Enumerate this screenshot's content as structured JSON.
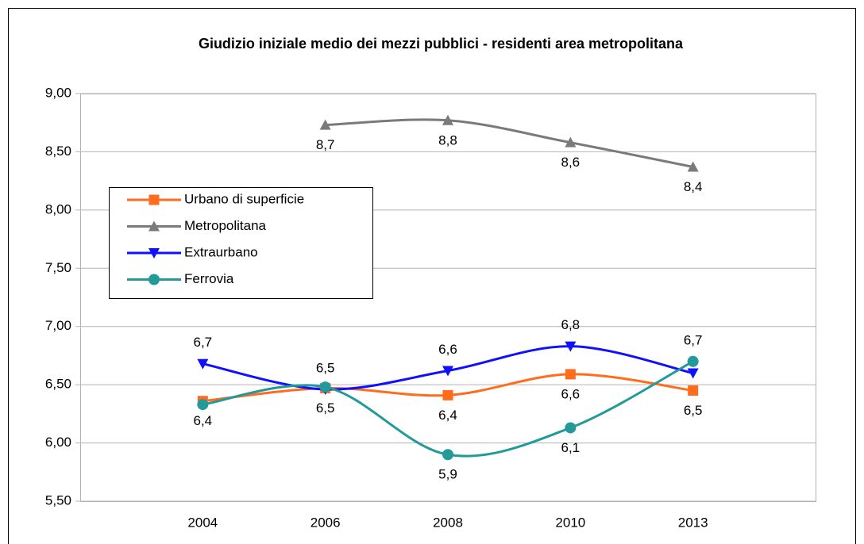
{
  "chart_data": {
    "type": "line",
    "title": "Giudizio iniziale medio dei mezzi pubblici - residenti area metropolitana",
    "categories": [
      "2004",
      "2006",
      "2008",
      "2010",
      "2013"
    ],
    "ylim": [
      5.5,
      9.0
    ],
    "yticks": [
      {
        "value": 5.5,
        "label": "5,50"
      },
      {
        "value": 6.0,
        "label": "6,00"
      },
      {
        "value": 6.5,
        "label": "6,50"
      },
      {
        "value": 7.0,
        "label": "7,00"
      },
      {
        "value": 7.5,
        "label": "7,50"
      },
      {
        "value": 8.0,
        "label": "8,00"
      },
      {
        "value": 8.5,
        "label": "8,50"
      },
      {
        "value": 9.0,
        "label": "9,00"
      }
    ],
    "grid": true,
    "smooth": true,
    "legend": "left",
    "series": [
      {
        "name": "Urbano di superficie",
        "color": "#ff6d1c",
        "marker": "square",
        "values": [
          6.36,
          6.47,
          6.41,
          6.59,
          6.45
        ],
        "value_labels": [
          "6,4",
          "6,5",
          "6,4",
          "6,6",
          "6,5"
        ]
      },
      {
        "name": "Metropolitana",
        "color": "#7a7a7a",
        "marker": "triangle-up",
        "values": [
          null,
          8.73,
          8.77,
          8.58,
          8.37
        ],
        "value_labels": [
          null,
          "8,7",
          "8,8",
          "8,6",
          "8,4"
        ]
      },
      {
        "name": "Extraurbano",
        "color": "#1010ff",
        "marker": "triangle-down",
        "values": [
          6.68,
          6.46,
          6.62,
          6.83,
          6.6
        ],
        "value_labels": [
          "6,7",
          "6,5",
          "6,6",
          "6,8",
          null
        ]
      },
      {
        "name": "Ferrovia",
        "color": "#23999a",
        "marker": "circle",
        "values": [
          6.33,
          6.48,
          5.9,
          6.13,
          6.7
        ],
        "value_labels": [
          null,
          null,
          "5,9",
          "6,1",
          "6,7"
        ]
      }
    ]
  }
}
